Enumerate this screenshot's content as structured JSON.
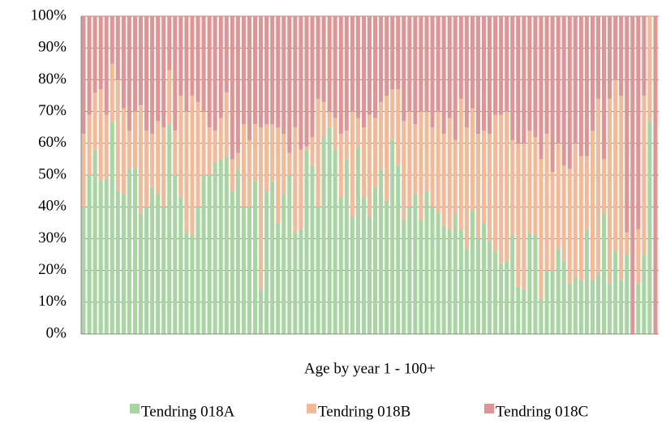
{
  "chart_data": {
    "type": "bar",
    "stacked": true,
    "x_label": "Age by year 1 - 100+",
    "categories": [
      null,
      null,
      null,
      null,
      null,
      null,
      null,
      null,
      null,
      null,
      null,
      null,
      null,
      null,
      null,
      null,
      null,
      null,
      null,
      null,
      null,
      null,
      null,
      null,
      null,
      null,
      null,
      null,
      null,
      null,
      null,
      null,
      null,
      null,
      null,
      null,
      null,
      null,
      null,
      null,
      null,
      null,
      null,
      null,
      null,
      null,
      null,
      null,
      null,
      null,
      null,
      null,
      null,
      null,
      null,
      null,
      null,
      null,
      null,
      null,
      null,
      null,
      null,
      null,
      null,
      null,
      null,
      null,
      null,
      null,
      null,
      null,
      null,
      null,
      null,
      null,
      null,
      null,
      null,
      null,
      null,
      null,
      null,
      null,
      null,
      null,
      null,
      null,
      null,
      null,
      null,
      null,
      null,
      null,
      null,
      null,
      null,
      null,
      null,
      null,
      null
    ],
    "series": [
      {
        "name": "Tendring 018A",
        "color": "#a8d5a2",
        "values": [
          40,
          50,
          58,
          48,
          49,
          67,
          45,
          44,
          52,
          52,
          38,
          40,
          46,
          44,
          40,
          66,
          50,
          43,
          32,
          31,
          40,
          50,
          50,
          54,
          55,
          56,
          45,
          52,
          40,
          40,
          48,
          14,
          45,
          48,
          35,
          44,
          50,
          32,
          33,
          58,
          53,
          40,
          62,
          65,
          58,
          43,
          55,
          37,
          59,
          43,
          37,
          46,
          52,
          42,
          61,
          53,
          36,
          40,
          44,
          36,
          45,
          40,
          38,
          34,
          33,
          38,
          33,
          27,
          39,
          30,
          35,
          29,
          26,
          22,
          23,
          31,
          15,
          14,
          32,
          31,
          11,
          20,
          20,
          27,
          23,
          16,
          18,
          17,
          33,
          17,
          19,
          38,
          16,
          26,
          17,
          25,
          0,
          16,
          25,
          67,
          0
        ]
      },
      {
        "name": "Tendring 018B",
        "color": "#f4b996",
        "values": [
          23,
          19,
          18,
          29,
          20,
          18,
          35,
          27,
          12,
          18,
          34,
          24,
          17,
          23,
          25,
          17,
          14,
          32,
          38,
          44,
          33,
          20,
          15,
          10,
          13,
          20,
          10,
          5,
          26,
          21,
          18,
          51,
          21,
          18,
          30,
          19,
          7,
          33,
          25,
          1,
          9,
          34,
          11,
          5,
          10,
          20,
          9,
          33,
          9,
          22,
          32,
          22,
          21,
          33,
          16,
          24,
          31,
          30,
          22,
          34,
          25,
          25,
          32,
          29,
          35,
          23,
          41,
          38,
          32,
          33,
          29,
          34,
          43,
          47,
          47,
          30,
          45,
          46,
          32,
          31,
          44,
          43,
          31,
          33,
          30,
          36,
          42,
          39,
          23,
          47,
          55,
          17,
          58,
          54,
          58,
          7,
          0,
          17,
          50,
          33,
          0
        ]
      },
      {
        "name": "Tendring 018C",
        "color": "#e09494",
        "values": [
          37,
          31,
          24,
          23,
          31,
          15,
          20,
          29,
          36,
          30,
          28,
          36,
          37,
          33,
          35,
          17,
          36,
          25,
          30,
          25,
          27,
          30,
          35,
          36,
          32,
          24,
          45,
          43,
          34,
          39,
          34,
          35,
          34,
          34,
          35,
          37,
          43,
          35,
          42,
          41,
          38,
          26,
          27,
          30,
          32,
          37,
          36,
          30,
          32,
          35,
          31,
          32,
          27,
          25,
          23,
          23,
          33,
          30,
          34,
          30,
          30,
          35,
          30,
          37,
          32,
          39,
          26,
          35,
          29,
          37,
          36,
          37,
          31,
          31,
          30,
          39,
          40,
          40,
          36,
          38,
          45,
          37,
          49,
          40,
          47,
          48,
          40,
          44,
          44,
          36,
          26,
          45,
          26,
          20,
          25,
          68,
          100,
          67,
          25,
          0,
          100
        ]
      }
    ],
    "ylim": [
      0,
      100
    ],
    "yticks": [
      {
        "value": 0,
        "label": "0%"
      },
      {
        "value": 10,
        "label": "10%"
      },
      {
        "value": 20,
        "label": "20%"
      },
      {
        "value": 30,
        "label": "30%"
      },
      {
        "value": 40,
        "label": "40%"
      },
      {
        "value": 50,
        "label": "50%"
      },
      {
        "value": 60,
        "label": "60%"
      },
      {
        "value": 70,
        "label": "70%"
      },
      {
        "value": 80,
        "label": "80%"
      },
      {
        "value": 90,
        "label": "90%"
      },
      {
        "value": 100,
        "label": "100%"
      }
    ],
    "grid": true,
    "legend": "bottom"
  }
}
